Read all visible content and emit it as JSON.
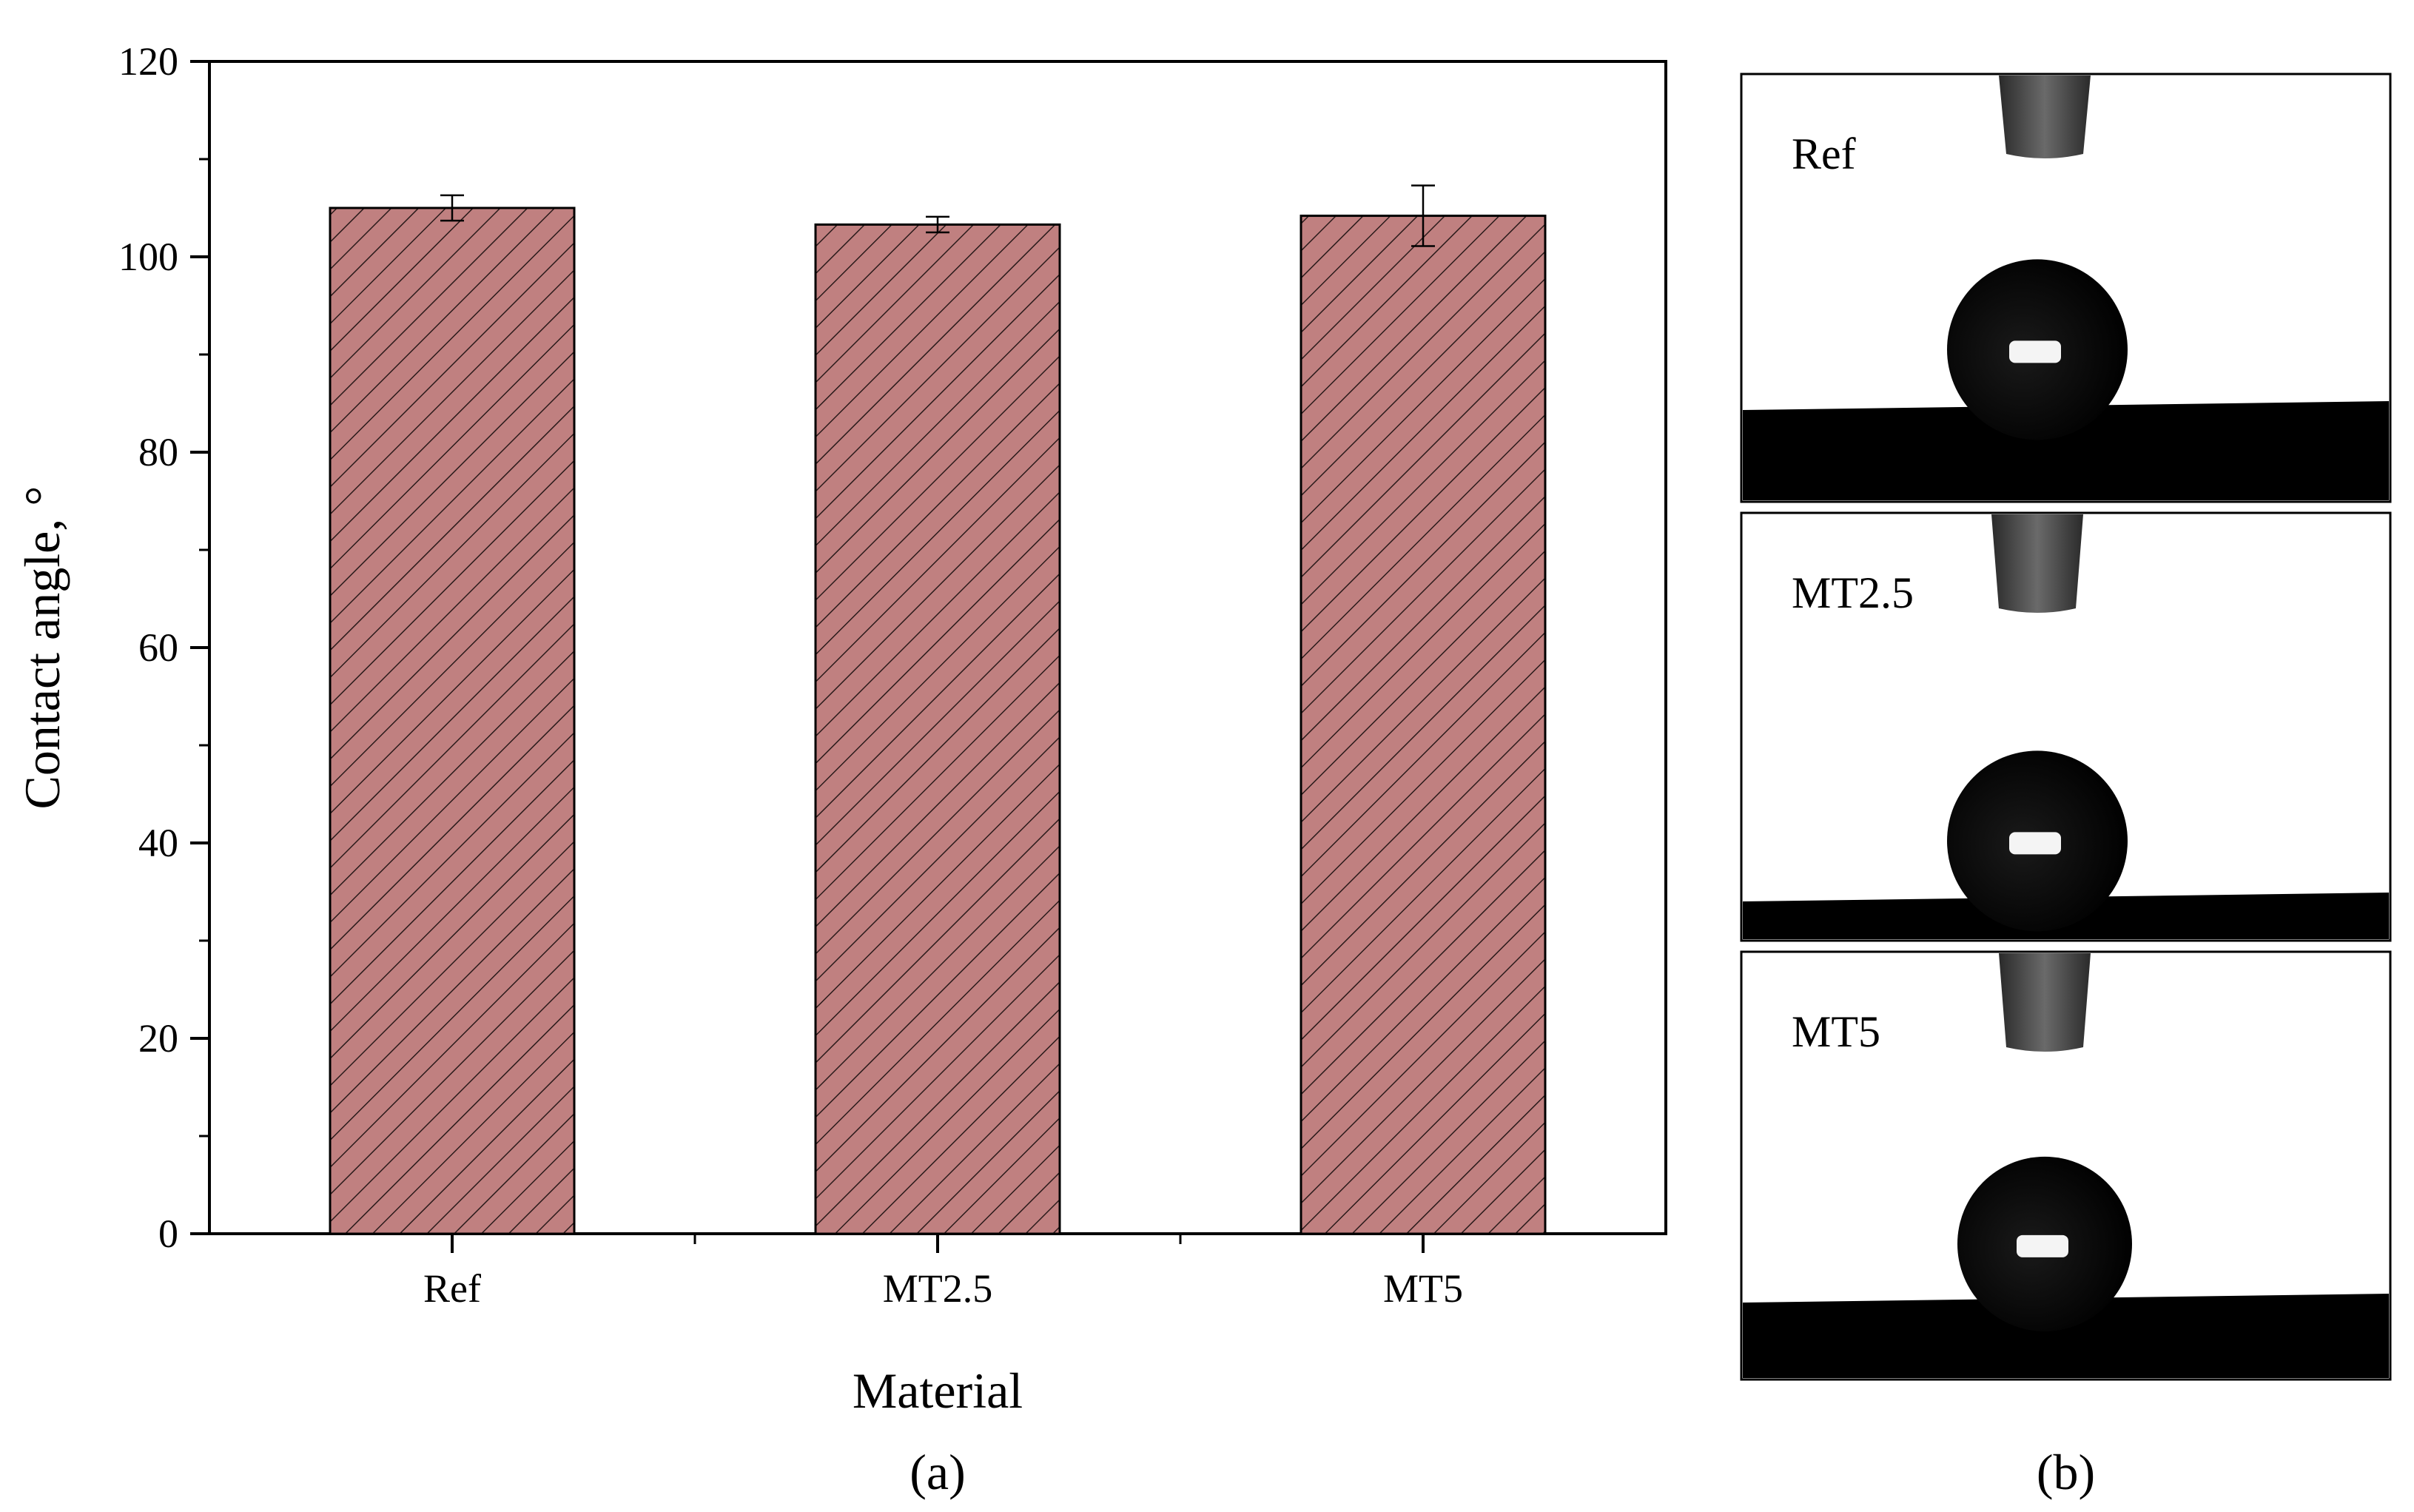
{
  "chart_data": {
    "type": "bar",
    "categories": [
      "Ref",
      "MT2.5",
      "MT5"
    ],
    "values": [
      105.0,
      103.3,
      104.2
    ],
    "errors": [
      1.3,
      0.8,
      3.1
    ],
    "xlabel": "Material",
    "ylabel": "Contact angle, °",
    "ylim": [
      0,
      120
    ],
    "yticks": [
      0,
      20,
      40,
      60,
      80,
      100,
      120
    ],
    "bar_color": "#c08080",
    "bar_pattern": "diagonal-hatch",
    "grid": false,
    "panel_label": "(a)"
  },
  "photo_panel": {
    "panel_label": "(b)",
    "photos": [
      {
        "label": "Ref"
      },
      {
        "label": "MT2.5"
      },
      {
        "label": "MT5"
      }
    ]
  }
}
